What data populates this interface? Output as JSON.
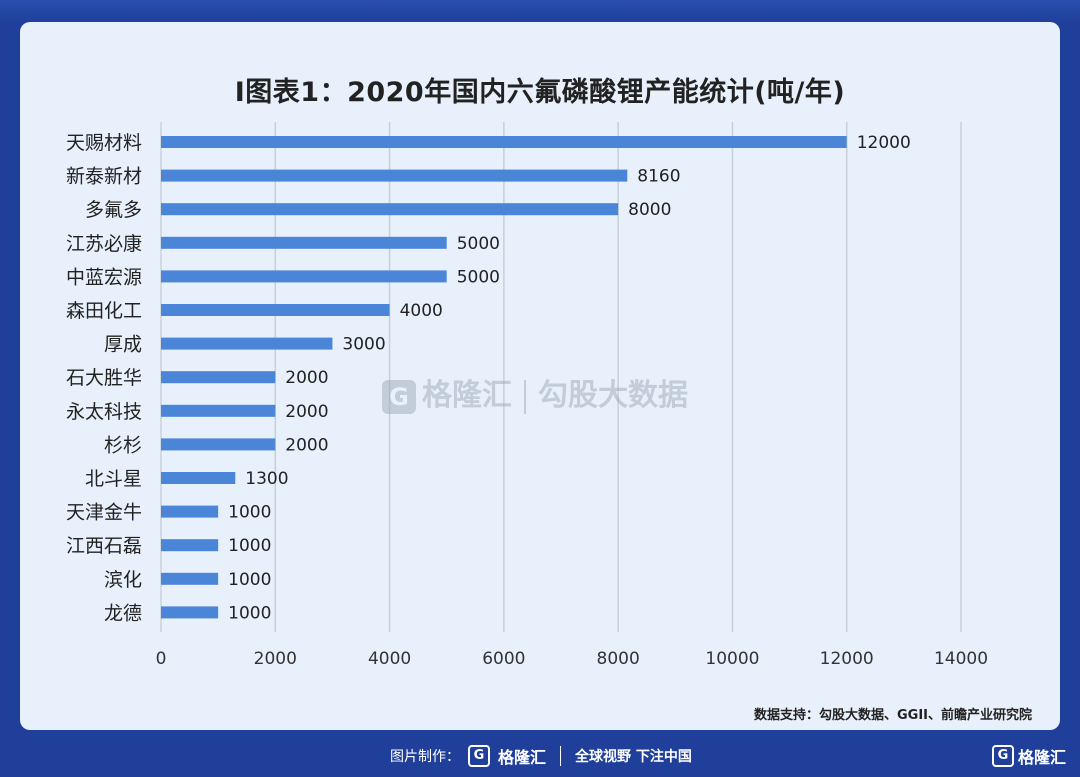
{
  "chart_data": {
    "type": "bar",
    "orientation": "horizontal",
    "title": "I图表1：2020年国内六氟磷酸锂产能统计(吨/年)",
    "categories": [
      "天赐材料",
      "新泰新材",
      "多氟多",
      "江苏必康",
      "中蓝宏源",
      "森田化工",
      "厚成",
      "石大胜华",
      "永太科技",
      "杉杉",
      "北斗星",
      "天津金牛",
      "江西石磊",
      "滨化",
      "龙德"
    ],
    "values": [
      12000,
      8160,
      8000,
      5000,
      5000,
      4000,
      3000,
      2000,
      2000,
      2000,
      1300,
      1000,
      1000,
      1000,
      1000
    ],
    "xlim": [
      0,
      14000
    ],
    "xticks": [
      "0",
      "2000",
      "4000",
      "6000",
      "8000",
      "10000",
      "12000",
      "14000"
    ],
    "grid": "vertical",
    "bar_color": "#4a85d8"
  },
  "watermark": {
    "logo_char": "G",
    "brand": "格隆汇",
    "text": "勾股大数据"
  },
  "source": "数据支持：勾股大数据、GGII、前瞻产业研究院",
  "footer": {
    "made_by": "图片制作：",
    "logo_char": "G",
    "brand": "格隆汇",
    "slogan": "全球视野 下注中国",
    "corner_brand": "格隆汇"
  },
  "colors": {
    "frame": "#1f3f9a",
    "card": "#e8f1fb",
    "bar": "#4a85d8",
    "grid": "#c9cfd8"
  }
}
